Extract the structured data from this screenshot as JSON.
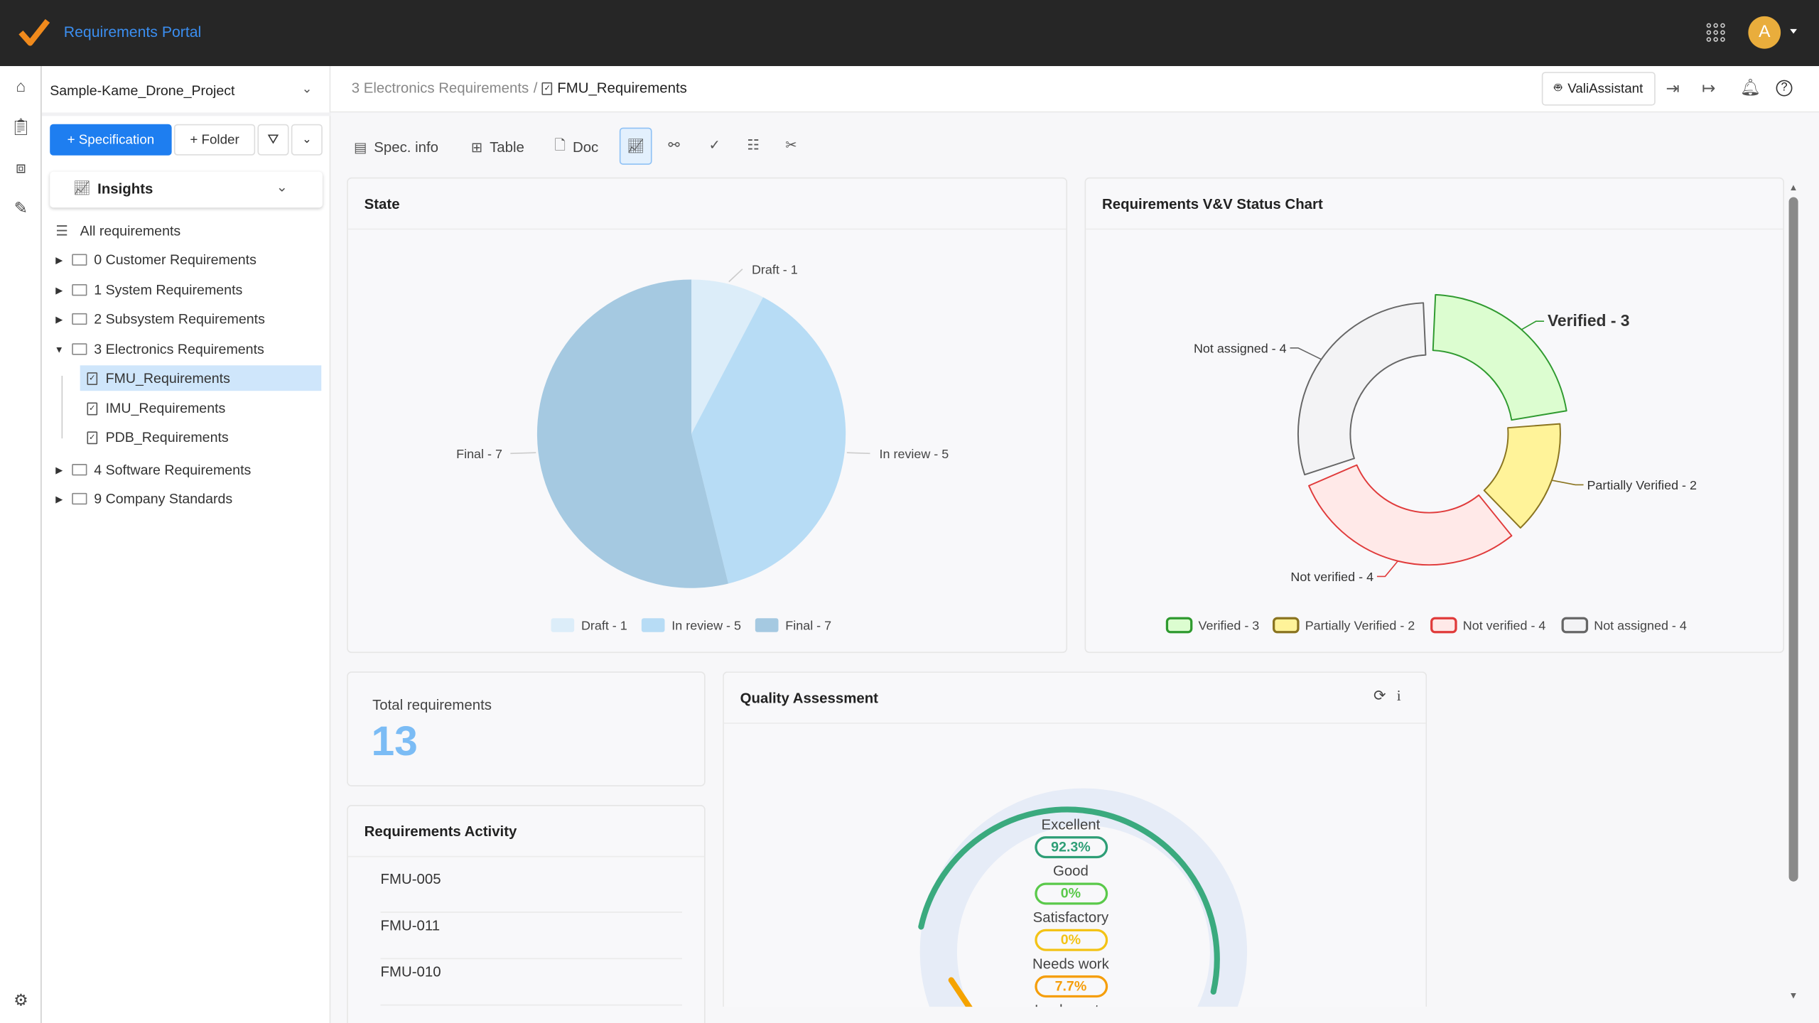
{
  "app": {
    "title": "Requirements Portal",
    "avatar_letter": "A",
    "colors": {
      "brand": "#3b8ef0",
      "primary_button": "#1e7ef0",
      "avatar": "#e9ad3c"
    }
  },
  "sidebar": {
    "project": "Sample-Kame_Drone_Project",
    "add_spec_label": "+ Specification",
    "add_folder_label": "+ Folder",
    "view_selector": "Insights",
    "all_requirements": "All requirements",
    "tree": [
      {
        "label": "0 Customer Requirements",
        "type": "folder",
        "expanded": false
      },
      {
        "label": "1 System Requirements",
        "type": "folder",
        "expanded": false
      },
      {
        "label": "2 Subsystem Requirements",
        "type": "folder",
        "expanded": false
      },
      {
        "label": "3 Electronics Requirements",
        "type": "folder",
        "expanded": true
      },
      {
        "label": "FMU_Requirements",
        "type": "spec",
        "selected": true
      },
      {
        "label": "IMU_Requirements",
        "type": "spec"
      },
      {
        "label": "PDB_Requirements",
        "type": "spec"
      },
      {
        "label": "4 Software Requirements",
        "type": "folder",
        "expanded": false
      },
      {
        "label": "9 Company Standards",
        "type": "folder",
        "expanded": false
      }
    ]
  },
  "header": {
    "breadcrumb_parent": "3 Electronics Requirements",
    "breadcrumb_sep": "/",
    "breadcrumb_current": "FMU_Requirements",
    "assistant_label": "ValiAssistant"
  },
  "toolbar": {
    "spec_info": "Spec. info",
    "table": "Table",
    "doc": "Doc",
    "active": "insights-chart"
  },
  "state_card": {
    "title": "State"
  },
  "vv_card": {
    "title": "Requirements V&V Status Chart"
  },
  "total_card": {
    "label": "Total requirements",
    "value": "13"
  },
  "activity_card": {
    "title": "Requirements Activity",
    "items": [
      "FMU-005",
      "FMU-011",
      "FMU-010"
    ]
  },
  "quality_card": {
    "title": "Quality Assessment",
    "levels": [
      {
        "label": "Excellent",
        "value": "92.3%",
        "color": "#2e9e76"
      },
      {
        "label": "Good",
        "value": "0%",
        "color": "#5ac94a"
      },
      {
        "label": "Satisfactory",
        "value": "0%",
        "color": "#f3c316"
      },
      {
        "label": "Needs work",
        "value": "7.7%",
        "color": "#f59e0b"
      },
      {
        "label": "Inadequate",
        "value": "",
        "color": "#e05050"
      }
    ]
  },
  "chart_data": [
    {
      "type": "pie",
      "title": "State",
      "categories": [
        "Draft",
        "In review",
        "Final"
      ],
      "values": [
        1,
        5,
        7
      ],
      "labels": [
        "Draft - 1",
        "In review - 5",
        "Final - 7"
      ],
      "colors": [
        "#dcedf9",
        "#b7dcf5",
        "#a5c9e1"
      ],
      "legend": "bottom"
    },
    {
      "type": "pie",
      "title": "Requirements V&V Status Chart",
      "categories": [
        "Verified",
        "Partially Verified",
        "Not verified",
        "Not assigned"
      ],
      "values": [
        3,
        2,
        4,
        4
      ],
      "labels": [
        "Verified - 3",
        "Partially Verified - 2",
        "Not verified - 4",
        "Not assigned - 4"
      ],
      "fills": [
        "#dcfdd0",
        "#fff399",
        "#ffe9e8",
        "#f3f3f5"
      ],
      "strokes": [
        "#2f9a2f",
        "#8a7420",
        "#e03b3b",
        "#666666"
      ],
      "legend": "bottom",
      "donut": true
    }
  ]
}
